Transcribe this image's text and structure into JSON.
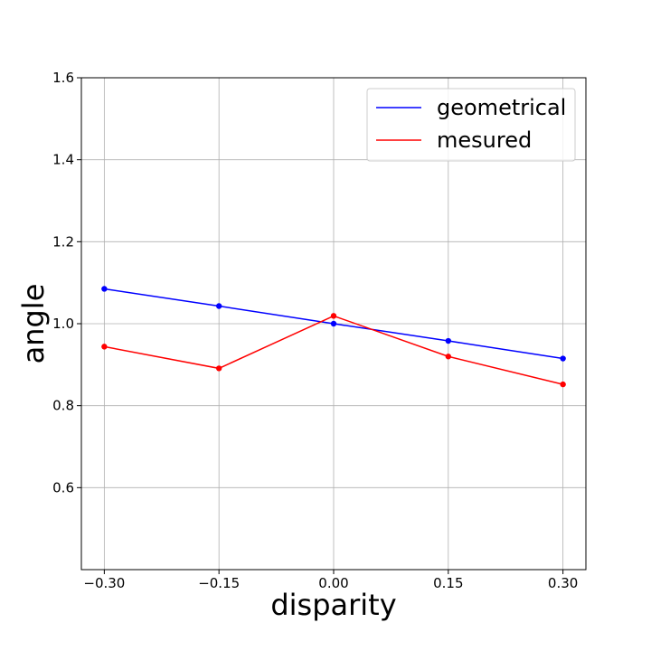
{
  "chart_data": {
    "type": "line",
    "title": "",
    "xlabel": "disparity",
    "ylabel": "angle",
    "x": [
      -0.3,
      -0.15,
      0.0,
      0.15,
      0.3
    ],
    "x_tick_labels": [
      "−0.30",
      "−0.15",
      "0.00",
      "0.15",
      "0.30"
    ],
    "y_ticks": [
      0.6,
      0.8,
      1.0,
      1.2,
      1.4,
      1.6
    ],
    "y_tick_labels": [
      "0.6",
      "0.8",
      "1.0",
      "1.2",
      "1.4",
      "1.6"
    ],
    "xlim": [
      -0.33,
      0.33
    ],
    "ylim": [
      0.4,
      1.6
    ],
    "grid": true,
    "legend_position": "top-right",
    "series": [
      {
        "name": "geometrical",
        "color": "#0000ff",
        "values": [
          1.085,
          1.043,
          1.0,
          0.958,
          0.915
        ]
      },
      {
        "name": "mesured",
        "color": "#ff0000",
        "values": [
          0.944,
          0.891,
          1.019,
          0.92,
          0.852
        ]
      }
    ]
  }
}
